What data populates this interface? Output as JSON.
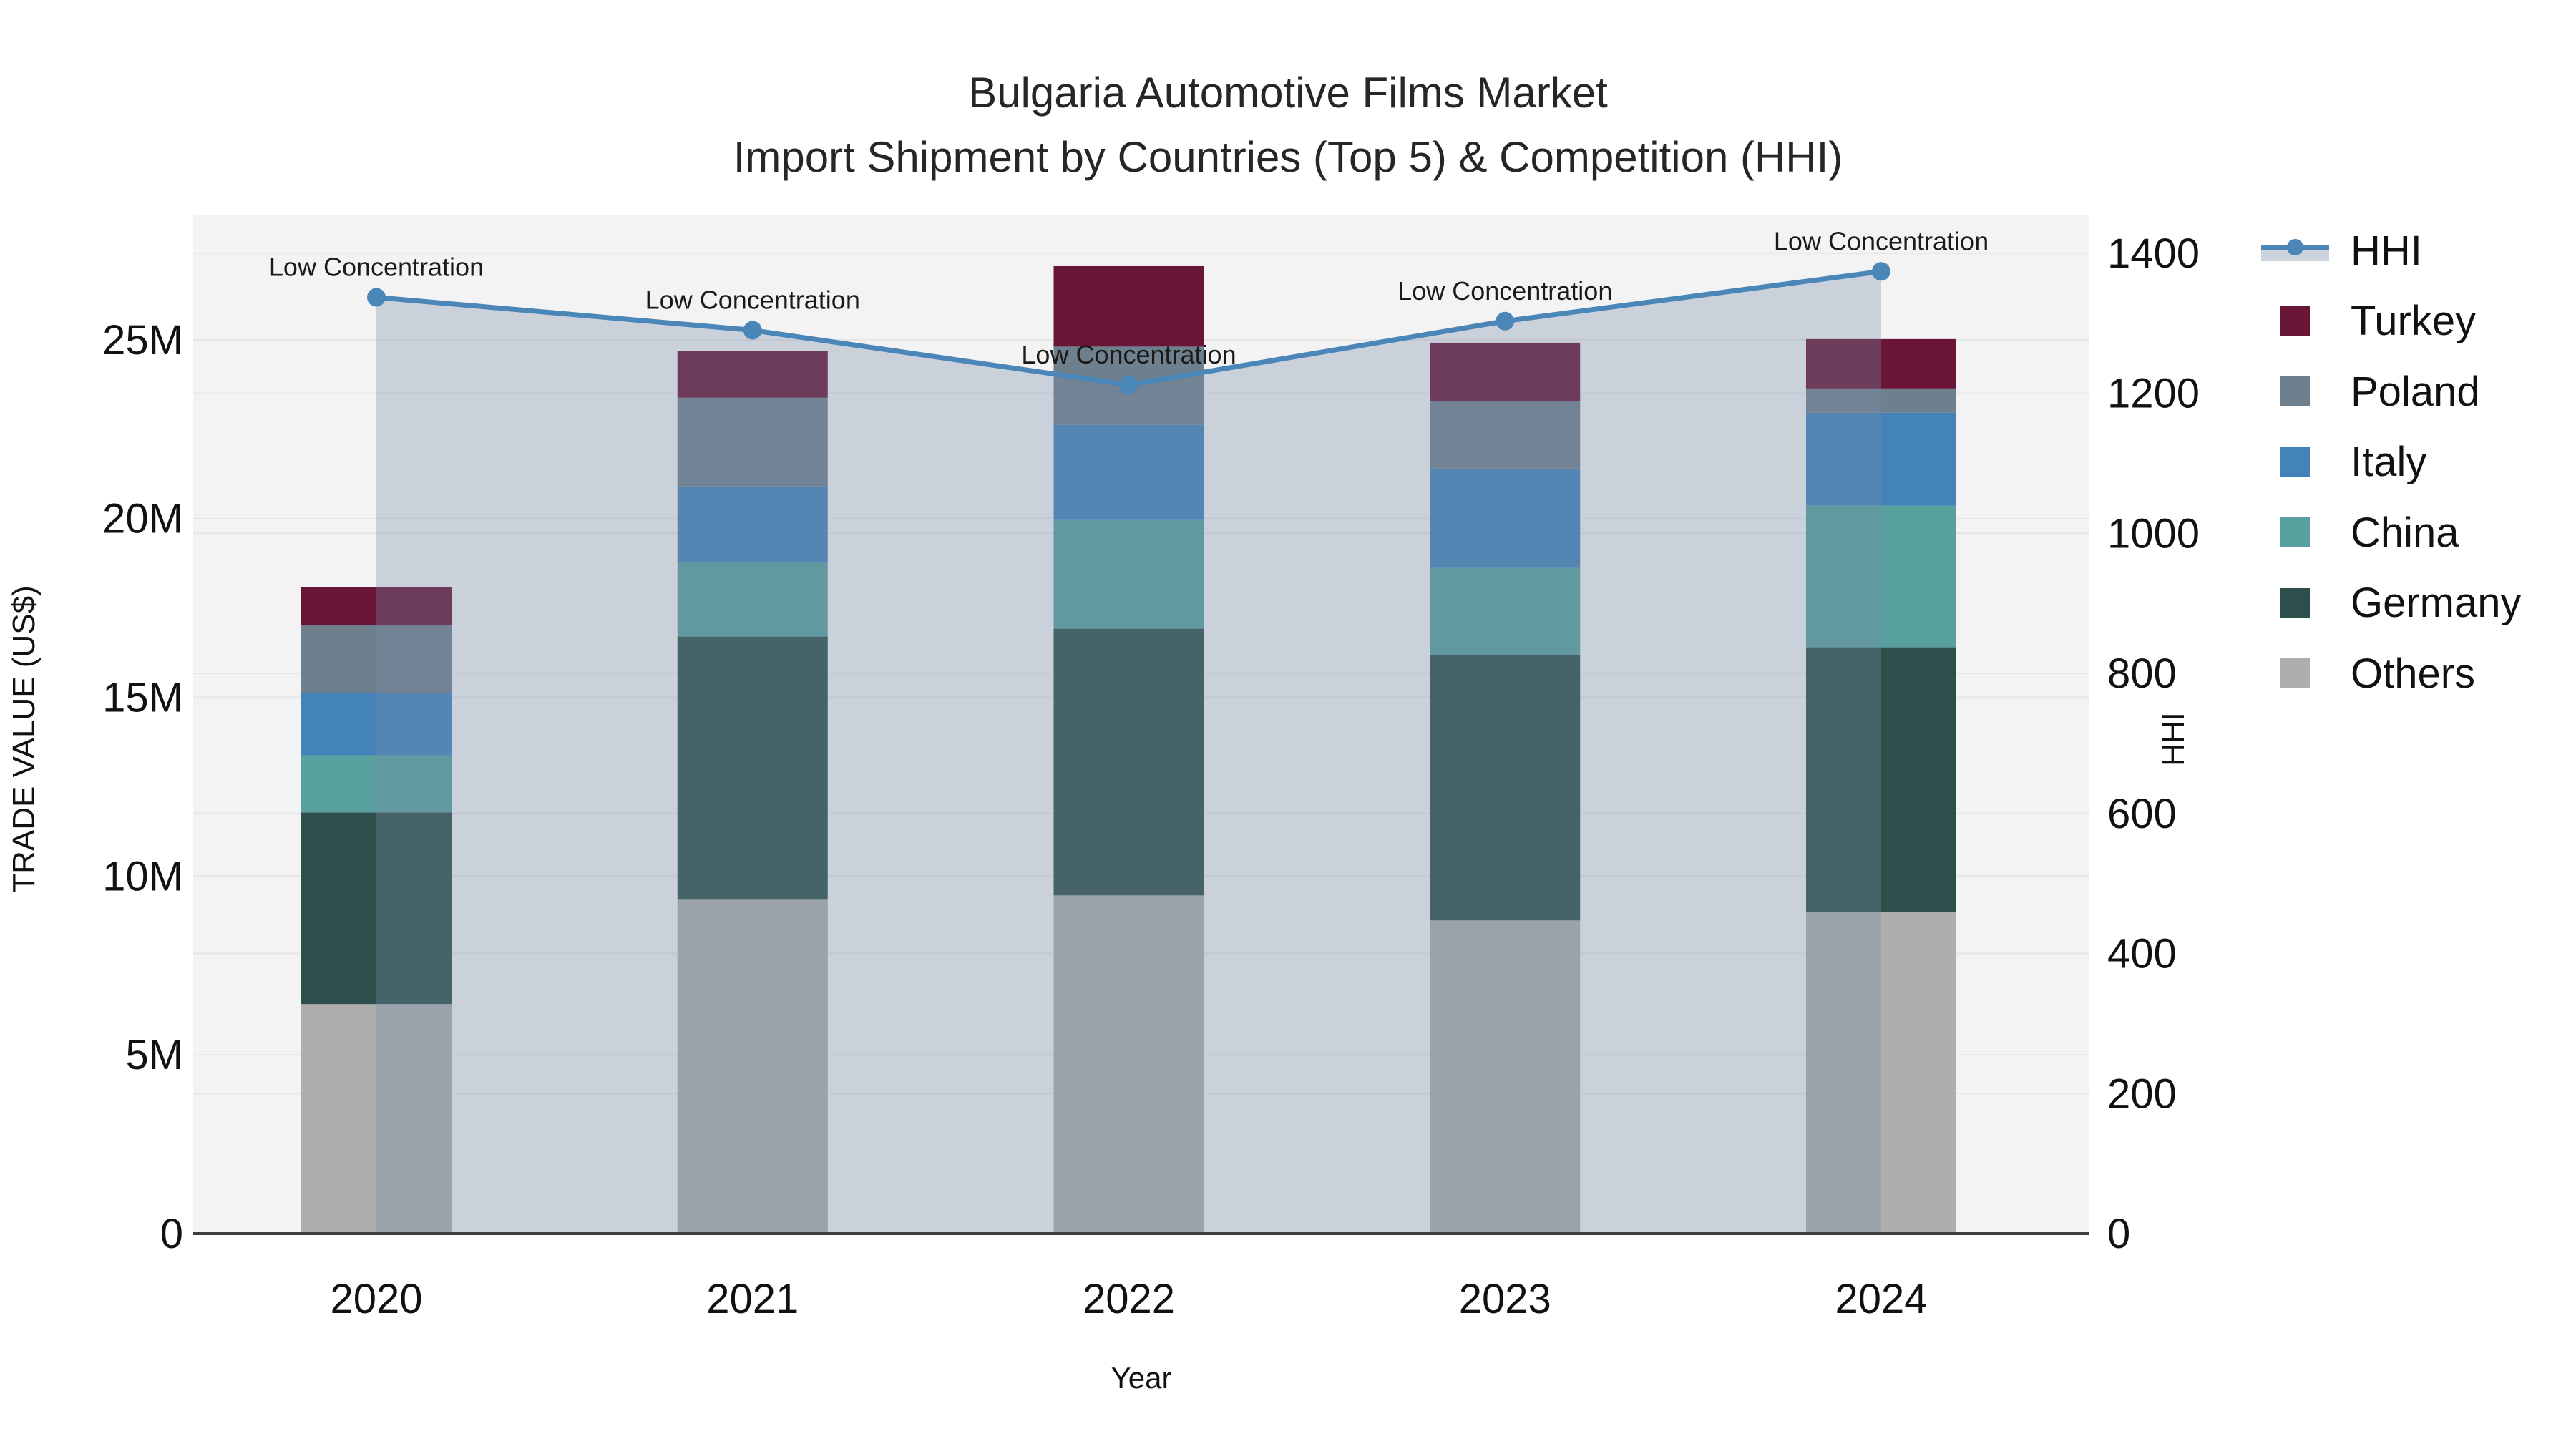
{
  "title": {
    "line1": "Bulgaria Automotive Films Market",
    "line2": "Import Shipment by Countries (Top 5) & Competition (HHI)"
  },
  "axes": {
    "x": {
      "label": "Year",
      "tick_labels": [
        "2020",
        "2021",
        "2022",
        "2023",
        "2024"
      ]
    },
    "left": {
      "label": "TRADE VALUE (US$)",
      "tick_labels": [
        "0",
        "5M",
        "10M",
        "15M",
        "20M",
        "25M"
      ],
      "tick_values": [
        0,
        5,
        10,
        15,
        20,
        25
      ]
    },
    "right": {
      "label": "HHI",
      "tick_labels": [
        "0",
        "200",
        "400",
        "600",
        "800",
        "1000",
        "1200",
        "1400"
      ],
      "tick_values": [
        0,
        200,
        400,
        600,
        800,
        1000,
        1200,
        1400
      ]
    }
  },
  "legend": {
    "items": [
      {
        "label": "HHI",
        "type": "line",
        "color": "#4a86b8"
      },
      {
        "label": "Turkey",
        "type": "swatch",
        "color": "#681537"
      },
      {
        "label": "Poland",
        "type": "swatch",
        "color": "#6e7f8d"
      },
      {
        "label": "Italy",
        "type": "swatch",
        "color": "#4383ba"
      },
      {
        "label": "China",
        "type": "swatch",
        "color": "#57a09d"
      },
      {
        "label": "Germany",
        "type": "swatch",
        "color": "#2d4f4c"
      },
      {
        "label": "Others",
        "type": "swatch",
        "color": "#aeaeac"
      }
    ]
  },
  "chart_data": {
    "type": "bar",
    "subtype": "stacked-bars-with-line",
    "categories": [
      "2020",
      "2021",
      "2022",
      "2023",
      "2024"
    ],
    "bar_value_unit": "USD millions",
    "stack_order": "bottom-to-top",
    "series": [
      {
        "name": "Others",
        "color": "#aeaeac",
        "values": [
          6.42,
          9.34,
          9.46,
          8.76,
          9.0
        ]
      },
      {
        "name": "Germany",
        "color": "#2d4f4c",
        "values": [
          5.36,
          7.36,
          7.46,
          7.42,
          7.4
        ]
      },
      {
        "name": "China",
        "color": "#57a09d",
        "values": [
          1.6,
          2.08,
          3.04,
          2.44,
          3.96
        ]
      },
      {
        "name": "Italy",
        "color": "#4383ba",
        "values": [
          1.74,
          2.12,
          2.66,
          2.78,
          2.6
        ]
      },
      {
        "name": "Poland",
        "color": "#6e7f8d",
        "values": [
          1.9,
          2.48,
          2.19,
          1.88,
          0.68
        ]
      },
      {
        "name": "Turkey",
        "color": "#681537",
        "values": [
          1.06,
          1.3,
          2.25,
          1.64,
          1.38
        ]
      }
    ],
    "bar_totals": [
      18.08,
      24.68,
      27.06,
      24.92,
      25.02
    ],
    "line_series": {
      "name": "HHI",
      "axis": "right",
      "color": "#4a86b8",
      "area_fill": "rgba(120,139,167,0.33)",
      "values": [
        1337,
        1290,
        1212,
        1303,
        1374
      ],
      "point_annotations": [
        "Low Concentration",
        "Low Concentration",
        "Low Concentration",
        "Low Concentration",
        "Low Concentration"
      ]
    },
    "title": "Bulgaria Automotive Films Market — Import Shipment by Countries (Top 5) & Competition (HHI)",
    "xlabel": "Year",
    "ylabel_left": "TRADE VALUE (US$)",
    "ylabel_right": "HHI",
    "left_ylim": [
      0,
      28.5
    ],
    "right_ylim": [
      0,
      1455
    ],
    "grid": true,
    "legend_position": "right",
    "plot_background": "#f3f3f3",
    "gridline_color": "#e6e6e6",
    "axis_spine_color": "#3d3d3d"
  }
}
